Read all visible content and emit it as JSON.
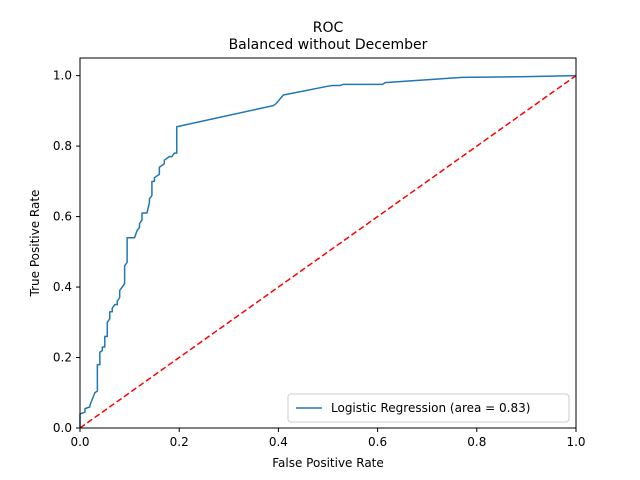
{
  "chart_data": {
    "type": "line",
    "title": "ROC",
    "subtitle": "Balanced without December",
    "xlabel": "False Positive Rate",
    "ylabel": "True Positive Rate",
    "xlim": [
      0.0,
      1.0
    ],
    "ylim": [
      0.0,
      1.05
    ],
    "x_ticks": [
      0.0,
      0.2,
      0.4,
      0.6,
      0.8,
      1.0
    ],
    "y_ticks": [
      0.0,
      0.2,
      0.4,
      0.6,
      0.8,
      1.0
    ],
    "x_tick_labels": [
      "0.0",
      "0.2",
      "0.4",
      "0.6",
      "0.8",
      "1.0"
    ],
    "y_tick_labels": [
      "0.0",
      "0.2",
      "0.4",
      "0.6",
      "0.8",
      "1.0"
    ],
    "grid": false,
    "legend_position": "lower-right",
    "series": [
      {
        "name": "Logistic Regression (area = 0.83)",
        "color": "#1f77b4",
        "style": "solid",
        "points": [
          [
            0.0,
            0.0
          ],
          [
            0.0,
            0.04
          ],
          [
            0.01,
            0.045
          ],
          [
            0.01,
            0.055
          ],
          [
            0.02,
            0.06
          ],
          [
            0.02,
            0.065
          ],
          [
            0.03,
            0.1
          ],
          [
            0.035,
            0.105
          ],
          [
            0.035,
            0.18
          ],
          [
            0.04,
            0.18
          ],
          [
            0.04,
            0.215
          ],
          [
            0.045,
            0.22
          ],
          [
            0.045,
            0.23
          ],
          [
            0.05,
            0.23
          ],
          [
            0.05,
            0.26
          ],
          [
            0.055,
            0.26
          ],
          [
            0.055,
            0.3
          ],
          [
            0.06,
            0.31
          ],
          [
            0.06,
            0.33
          ],
          [
            0.065,
            0.33
          ],
          [
            0.065,
            0.34
          ],
          [
            0.07,
            0.35
          ],
          [
            0.075,
            0.35
          ],
          [
            0.075,
            0.36
          ],
          [
            0.08,
            0.37
          ],
          [
            0.08,
            0.39
          ],
          [
            0.085,
            0.4
          ],
          [
            0.09,
            0.41
          ],
          [
            0.09,
            0.46
          ],
          [
            0.095,
            0.47
          ],
          [
            0.095,
            0.54
          ],
          [
            0.11,
            0.54
          ],
          [
            0.115,
            0.56
          ],
          [
            0.12,
            0.57
          ],
          [
            0.12,
            0.58
          ],
          [
            0.125,
            0.59
          ],
          [
            0.125,
            0.61
          ],
          [
            0.135,
            0.61
          ],
          [
            0.14,
            0.64
          ],
          [
            0.14,
            0.65
          ],
          [
            0.145,
            0.66
          ],
          [
            0.145,
            0.7
          ],
          [
            0.15,
            0.7
          ],
          [
            0.15,
            0.71
          ],
          [
            0.16,
            0.72
          ],
          [
            0.16,
            0.74
          ],
          [
            0.17,
            0.75
          ],
          [
            0.17,
            0.76
          ],
          [
            0.18,
            0.77
          ],
          [
            0.185,
            0.77
          ],
          [
            0.19,
            0.78
          ],
          [
            0.195,
            0.78
          ],
          [
            0.195,
            0.855
          ],
          [
            0.39,
            0.915
          ],
          [
            0.395,
            0.92
          ],
          [
            0.41,
            0.945
          ],
          [
            0.5,
            0.97
          ],
          [
            0.51,
            0.972
          ],
          [
            0.525,
            0.972
          ],
          [
            0.53,
            0.975
          ],
          [
            0.61,
            0.975
          ],
          [
            0.615,
            0.98
          ],
          [
            0.77,
            0.995
          ],
          [
            0.9,
            0.997
          ],
          [
            1.0,
            1.0
          ]
        ]
      },
      {
        "name": "",
        "color": "#ff0000",
        "style": "dashed",
        "points": [
          [
            0.0,
            0.0
          ],
          [
            1.0,
            1.0
          ]
        ]
      }
    ]
  }
}
